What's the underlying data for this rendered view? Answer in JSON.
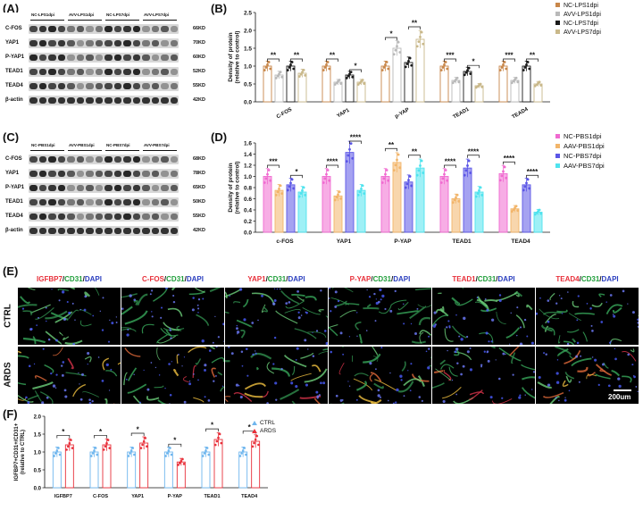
{
  "panels": {
    "A": "(A)",
    "B": "(B)",
    "C": "(C)",
    "D": "(D)",
    "E": "(E)",
    "F": "(F)"
  },
  "blotA": {
    "groups": [
      "NC-LPS1dpi",
      "AVV-LPS1dpi",
      "NC-LPS7dpi",
      "AVV-LPS7dpi"
    ],
    "rows": [
      {
        "name": "C-FOS",
        "kd": "66KD"
      },
      {
        "name": "YAP1",
        "kd": "70KD"
      },
      {
        "name": "P-YAP1",
        "kd": "60KD"
      },
      {
        "name": "TEAD1",
        "kd": "52KD"
      },
      {
        "name": "TEAD4",
        "kd": "55KD"
      },
      {
        "name": "β-actin",
        "kd": "42KD"
      }
    ]
  },
  "blotC": {
    "groups": [
      "NC-PBS1dpi",
      "AVV-PBS1dpi",
      "NC-PBS7dpi",
      "AVV-PBS7dpi"
    ],
    "rows": [
      {
        "name": "C-FOS",
        "kd": "68KD"
      },
      {
        "name": "YAP1",
        "kd": "78KD"
      },
      {
        "name": "P-YAP1",
        "kd": "65KD"
      },
      {
        "name": "TEAD1",
        "kd": "50KD"
      },
      {
        "name": "TEAD4",
        "kd": "55KD"
      },
      {
        "name": "β-actin",
        "kd": "42KD"
      }
    ]
  },
  "microscopy": {
    "columns": [
      {
        "parts": [
          {
            "t": "IGFBP7",
            "c": "#e8303a"
          },
          {
            "t": "/",
            "c": "#111"
          },
          {
            "t": "CD31",
            "c": "#1f9e3a"
          },
          {
            "t": "/",
            "c": "#111"
          },
          {
            "t": "DAPI",
            "c": "#2b3fbf"
          }
        ]
      },
      {
        "parts": [
          {
            "t": "C-FOS",
            "c": "#e8303a"
          },
          {
            "t": "/",
            "c": "#111"
          },
          {
            "t": "CD31",
            "c": "#1f9e3a"
          },
          {
            "t": "/",
            "c": "#111"
          },
          {
            "t": "DAPI",
            "c": "#2b3fbf"
          }
        ]
      },
      {
        "parts": [
          {
            "t": "YAP1",
            "c": "#e8303a"
          },
          {
            "t": "/",
            "c": "#111"
          },
          {
            "t": "CD31",
            "c": "#1f9e3a"
          },
          {
            "t": "/",
            "c": "#111"
          },
          {
            "t": "DAPI",
            "c": "#2b3fbf"
          }
        ]
      },
      {
        "parts": [
          {
            "t": "P-YAP",
            "c": "#e8303a"
          },
          {
            "t": "/",
            "c": "#111"
          },
          {
            "t": "CD31",
            "c": "#1f9e3a"
          },
          {
            "t": "/",
            "c": "#111"
          },
          {
            "t": "DAPI",
            "c": "#2b3fbf"
          }
        ]
      },
      {
        "parts": [
          {
            "t": "TEAD1",
            "c": "#e8303a"
          },
          {
            "t": "/",
            "c": "#111"
          },
          {
            "t": "CD31",
            "c": "#1f9e3a"
          },
          {
            "t": "/",
            "c": "#111"
          },
          {
            "t": "DAPI",
            "c": "#2b3fbf"
          }
        ]
      },
      {
        "parts": [
          {
            "t": "TEAD4",
            "c": "#e8303a"
          },
          {
            "t": "/",
            "c": "#111"
          },
          {
            "t": "CD31",
            "c": "#1f9e3a"
          },
          {
            "t": "/",
            "c": "#111"
          },
          {
            "t": "DAPI",
            "c": "#2b3fbf"
          }
        ]
      }
    ],
    "rows": [
      "CTRL",
      "ARDS"
    ],
    "scale": "200um"
  },
  "chart_data": [
    {
      "panel": "B",
      "type": "bar",
      "ylabel": "Density of protein (relative to control)",
      "ylim": [
        0,
        2.5
      ],
      "yticks": [
        "0.0",
        "0.5",
        "1.0",
        "1.5",
        "2.0",
        "2.5"
      ],
      "categories": [
        "C-FOS",
        "YAP1",
        "p-YAP",
        "TEAD1",
        "TEAD4"
      ],
      "series": [
        {
          "name": "NC-LPS1dpi",
          "color": "#c8874a",
          "values": [
            1.0,
            1.0,
            1.0,
            1.0,
            1.0
          ]
        },
        {
          "name": "AVV-LPS1dpi",
          "color": "#b9b9b9",
          "values": [
            0.75,
            0.55,
            1.5,
            0.6,
            0.6
          ]
        },
        {
          "name": "NC-LPS7dpi",
          "color": "#1a1a1a",
          "values": [
            1.0,
            0.75,
            1.1,
            0.85,
            1.0
          ]
        },
        {
          "name": "AVV-LPS7dpi",
          "color": "#c9b88a",
          "values": [
            0.8,
            0.55,
            1.75,
            0.45,
            0.5
          ]
        }
      ],
      "significance": [
        {
          "category": "C-FOS",
          "pairs": [
            "**",
            "**"
          ]
        },
        {
          "category": "YAP1",
          "pairs": [
            "**",
            "*"
          ]
        },
        {
          "category": "p-YAP",
          "pairs": [
            "*",
            "**"
          ]
        },
        {
          "category": "TEAD1",
          "pairs": [
            "***",
            "*"
          ]
        },
        {
          "category": "TEAD4",
          "pairs": [
            "***",
            "**"
          ]
        }
      ]
    },
    {
      "panel": "D",
      "type": "bar",
      "ylabel": "Density of protein (relative to control)",
      "ylim": [
        0,
        1.6
      ],
      "yticks": [
        "0.0",
        "0.2",
        "0.4",
        "0.6",
        "0.8",
        "1.0",
        "1.2",
        "1.4",
        "1.6"
      ],
      "categories": [
        "c-FOS",
        "YAP1",
        "P-YAP",
        "TEAD1",
        "TEAD4"
      ],
      "series": [
        {
          "name": "NC-PBS1dpi",
          "color": "#f06ad0",
          "values": [
            1.0,
            1.0,
            1.0,
            1.0,
            1.05
          ]
        },
        {
          "name": "AAV-PBS1dpi",
          "color": "#f2b56a",
          "values": [
            0.75,
            0.65,
            1.25,
            0.6,
            0.42
          ]
        },
        {
          "name": "NC-PBS7dpi",
          "color": "#5b56e6",
          "values": [
            0.85,
            1.43,
            0.9,
            1.15,
            0.85
          ]
        },
        {
          "name": "AAV-PBS7dpi",
          "color": "#4fe3ee",
          "values": [
            0.72,
            0.75,
            1.15,
            0.72,
            0.36
          ]
        }
      ],
      "significance": [
        {
          "category": "c-FOS",
          "pairs": [
            "***",
            "*"
          ]
        },
        {
          "category": "YAP1",
          "pairs": [
            "****",
            "****"
          ]
        },
        {
          "category": "P-YAP",
          "pairs": [
            "**",
            "**"
          ]
        },
        {
          "category": "TEAD1",
          "pairs": [
            "****",
            "****"
          ]
        },
        {
          "category": "TEAD4",
          "pairs": [
            "****",
            "****"
          ]
        }
      ]
    },
    {
      "panel": "F",
      "type": "bar",
      "ylabel": "IGFBP7+CD31+/CD31+ (relative to CTRL)",
      "ylim": [
        0,
        2.0
      ],
      "yticks": [
        "0.0",
        "0.5",
        "1.0",
        "1.5",
        "2.0"
      ],
      "categories": [
        "IGFBP7",
        "C-FOS",
        "YAP1",
        "P-YAP",
        "TEAD1",
        "TEAD4"
      ],
      "series": [
        {
          "name": "CTRL",
          "color": "#6fb6ee",
          "values": [
            1.0,
            1.0,
            1.0,
            1.0,
            1.0,
            1.0
          ]
        },
        {
          "name": "ARDS",
          "color": "#e8303a",
          "values": [
            1.2,
            1.2,
            1.25,
            0.72,
            1.35,
            1.3
          ]
        }
      ],
      "significance": [
        "*",
        "*",
        "*",
        "*",
        "*",
        "*"
      ]
    }
  ]
}
